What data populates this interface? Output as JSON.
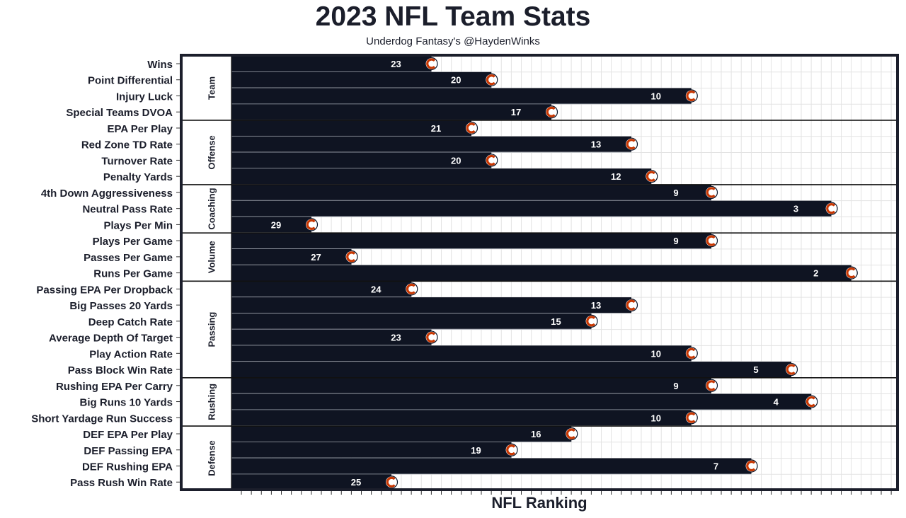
{
  "chart_data": {
    "type": "bar",
    "title": "2023 NFL Team Stats",
    "subtitle": "Underdog Fantasy's @HaydenWinks",
    "xlabel": "NFL Ranking",
    "ylabel": "",
    "orientation": "horizontal",
    "x_axis": "rank, 32 (left) to 1 (right)",
    "bar_color": "#0f1422",
    "label_color": "#ffffff",
    "grid": true,
    "team_logo": "chicago-bears-logo-icon",
    "groups": [
      {
        "name": "Team",
        "categories": [
          "Wins",
          "Point Differential",
          "Injury Luck",
          "Special Teams DVOA"
        ],
        "values": [
          23,
          20,
          10,
          17
        ]
      },
      {
        "name": "Offense",
        "categories": [
          "EPA Per Play",
          "Red Zone TD Rate",
          "Turnover Rate",
          "Penalty Yards"
        ],
        "values": [
          21,
          13,
          20,
          12
        ]
      },
      {
        "name": "Coaching",
        "categories": [
          "4th Down Aggressiveness",
          "Neutral Pass Rate",
          "Plays Per Min"
        ],
        "values": [
          9,
          3,
          29
        ]
      },
      {
        "name": "Volume",
        "categories": [
          "Plays Per Game",
          "Passes Per Game",
          "Runs Per Game"
        ],
        "values": [
          9,
          27,
          2
        ]
      },
      {
        "name": "Passing",
        "categories": [
          "Passing EPA Per Dropback",
          "Big Passes 20 Yards",
          "Deep Catch Rate",
          "Average Depth Of Target",
          "Play Action Rate",
          "Pass Block Win Rate"
        ],
        "values": [
          24,
          13,
          15,
          23,
          10,
          5
        ]
      },
      {
        "name": "Rushing",
        "categories": [
          "Rushing EPA Per Carry",
          "Big Runs 10 Yards",
          "Short Yardage Run Success"
        ],
        "values": [
          9,
          4,
          10
        ]
      },
      {
        "name": "Defense",
        "categories": [
          "DEF EPA Per Play",
          "DEF Passing EPA",
          "DEF Rushing EPA",
          "Pass Rush Win Rate"
        ],
        "values": [
          16,
          19,
          7,
          25
        ]
      }
    ]
  }
}
